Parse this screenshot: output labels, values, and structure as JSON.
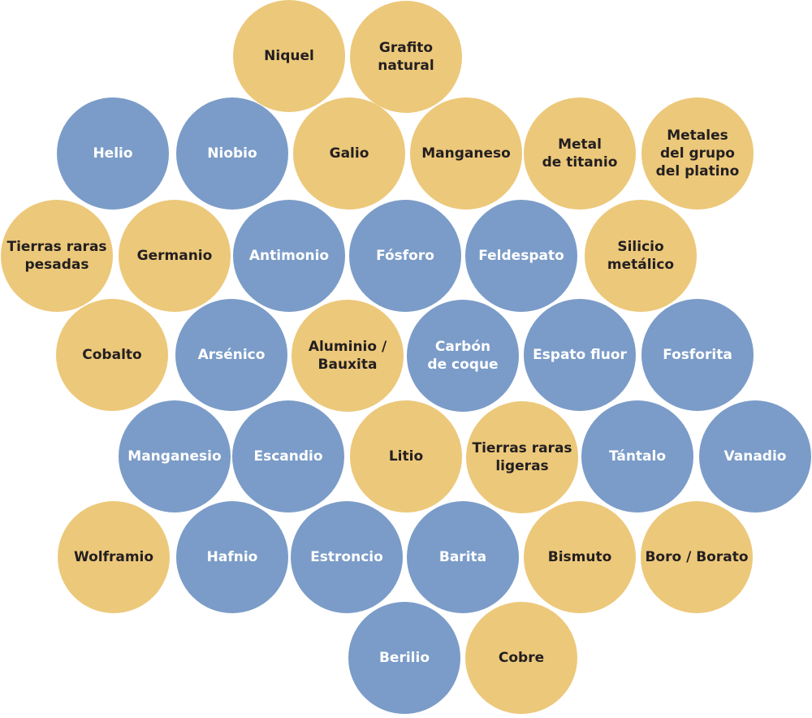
{
  "nodes": [
    {
      "lines": [
        "Niquel"
      ],
      "color": "#ecc87a",
      "text_color": "#231f20"
    },
    {
      "lines": [
        "Grafito",
        "natural"
      ],
      "color": "#ecc87a",
      "text_color": "#231f20"
    },
    {
      "lines": [
        "Helio"
      ],
      "color": "#7b9cc8",
      "text_color": "#ffffff"
    },
    {
      "lines": [
        "Niobio"
      ],
      "color": "#7b9cc8",
      "text_color": "#ffffff"
    },
    {
      "lines": [
        "Galio"
      ],
      "color": "#ecc87a",
      "text_color": "#231f20"
    },
    {
      "lines": [
        "Manganeso"
      ],
      "color": "#ecc87a",
      "text_color": "#231f20"
    },
    {
      "lines": [
        "Metal",
        "de titanio"
      ],
      "color": "#ecc87a",
      "text_color": "#231f20"
    },
    {
      "lines": [
        "Metales",
        "del grupo",
        "del platino"
      ],
      "color": "#ecc87a",
      "text_color": "#231f20"
    },
    {
      "lines": [
        "Tierras raras",
        "pesadas"
      ],
      "color": "#ecc87a",
      "text_color": "#231f20"
    },
    {
      "lines": [
        "Germanio"
      ],
      "color": "#ecc87a",
      "text_color": "#231f20"
    },
    {
      "lines": [
        "Antimonio"
      ],
      "color": "#7b9cc8",
      "text_color": "#ffffff"
    },
    {
      "lines": [
        "Fósforo"
      ],
      "color": "#7b9cc8",
      "text_color": "#ffffff"
    },
    {
      "lines": [
        "Feldespato"
      ],
      "color": "#7b9cc8",
      "text_color": "#ffffff"
    },
    {
      "lines": [
        "Silicio",
        "metálico"
      ],
      "color": "#ecc87a",
      "text_color": "#231f20"
    },
    {
      "lines": [
        "Cobalto"
      ],
      "color": "#ecc87a",
      "text_color": "#231f20"
    },
    {
      "lines": [
        "Arsénico"
      ],
      "color": "#7b9cc8",
      "text_color": "#ffffff"
    },
    {
      "lines": [
        "Aluminio /",
        "Bauxita"
      ],
      "color": "#ecc87a",
      "text_color": "#231f20"
    },
    {
      "lines": [
        "Carbón",
        "de coque"
      ],
      "color": "#7b9cc8",
      "text_color": "#ffffff"
    },
    {
      "lines": [
        "Espato fluor"
      ],
      "color": "#7b9cc8",
      "text_color": "#ffffff"
    },
    {
      "lines": [
        "Fosforita"
      ],
      "color": "#7b9cc8",
      "text_color": "#ffffff"
    },
    {
      "lines": [
        "Manganesio"
      ],
      "color": "#7b9cc8",
      "text_color": "#ffffff"
    },
    {
      "lines": [
        "Escandio"
      ],
      "color": "#7b9cc8",
      "text_color": "#ffffff"
    },
    {
      "lines": [
        "Litio"
      ],
      "color": "#ecc87a",
      "text_color": "#231f20"
    },
    {
      "lines": [
        "Tierras raras",
        "ligeras"
      ],
      "color": "#ecc87a",
      "text_color": "#231f20"
    },
    {
      "lines": [
        "Tántalo"
      ],
      "color": "#7b9cc8",
      "text_color": "#ffffff"
    },
    {
      "lines": [
        "Vanadio"
      ],
      "color": "#7b9cc8",
      "text_color": "#ffffff"
    },
    {
      "lines": [
        "Wolframio"
      ],
      "color": "#ecc87a",
      "text_color": "#231f20"
    },
    {
      "lines": [
        "Hafnio"
      ],
      "color": "#7b9cc8",
      "text_color": "#ffffff"
    },
    {
      "lines": [
        "Estroncio"
      ],
      "color": "#7b9cc8",
      "text_color": "#ffffff"
    },
    {
      "lines": [
        "Barita"
      ],
      "color": "#7b9cc8",
      "text_color": "#ffffff"
    },
    {
      "lines": [
        "Bismuto"
      ],
      "color": "#ecc87a",
      "text_color": "#231f20"
    },
    {
      "lines": [
        "Boro / Borato"
      ],
      "color": "#ecc87a",
      "text_color": "#231f20"
    },
    {
      "lines": [
        "Berilio"
      ],
      "color": "#7b9cc8",
      "text_color": "#ffffff"
    },
    {
      "lines": [
        "Cobre"
      ],
      "color": "#ecc87a",
      "text_color": "#231f20"
    }
  ]
}
